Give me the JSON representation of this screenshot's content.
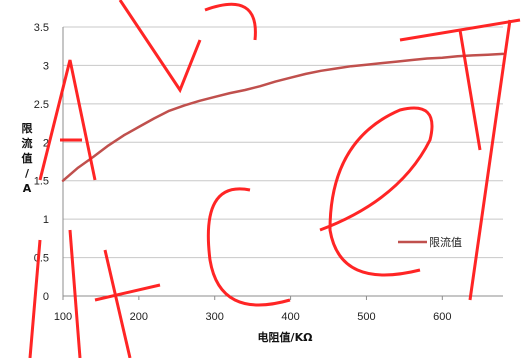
{
  "chart_data": {
    "type": "line",
    "title": "",
    "xlabel": "电阻值/KΩ",
    "ylabel": "限流值/A",
    "ylabel_chars": [
      "限",
      "流",
      "值",
      "/",
      "A"
    ],
    "xlim": [
      100,
      680
    ],
    "ylim": [
      0,
      3.5
    ],
    "x_ticks": [
      "100",
      "200",
      "300",
      "400",
      "500",
      "600"
    ],
    "y_ticks": [
      "0",
      "0.5",
      "1",
      "1.5",
      "2",
      "2.5",
      "3",
      "3.5"
    ],
    "grid": true,
    "legend_position": "right",
    "series": [
      {
        "name": "限流值",
        "color": "#c0504d",
        "x": [
          100,
          120,
          140,
          160,
          180,
          200,
          220,
          240,
          260,
          280,
          300,
          320,
          340,
          360,
          380,
          400,
          420,
          440,
          460,
          480,
          500,
          520,
          540,
          560,
          580,
          600,
          620,
          640,
          660,
          680
        ],
        "y": [
          1.5,
          1.67,
          1.81,
          1.96,
          2.09,
          2.2,
          2.31,
          2.41,
          2.48,
          2.54,
          2.59,
          2.64,
          2.68,
          2.73,
          2.79,
          2.84,
          2.89,
          2.93,
          2.96,
          2.99,
          3.01,
          3.03,
          3.05,
          3.07,
          3.09,
          3.1,
          3.12,
          3.13,
          3.14,
          3.15
        ]
      }
    ]
  },
  "watermark": {
    "color": "#ff1a1a",
    "text": "nitcel"
  }
}
